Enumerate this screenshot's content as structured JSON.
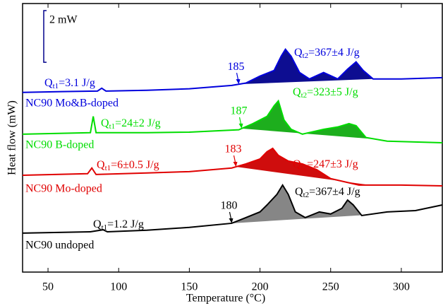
{
  "chart_data": {
    "type": "line",
    "xlabel": "Temperature (°C)",
    "ylabel": "Heat flow (mW)",
    "xlim": [
      32,
      329
    ],
    "ylim": [
      0,
      10.4
    ],
    "xticks": [
      50,
      100,
      150,
      200,
      250,
      300
    ],
    "scale_bar": {
      "value": 2,
      "label": "2 mW"
    },
    "series": [
      {
        "name": "NC90 Mo&B-doped",
        "color": "#0000dd",
        "fill_color": "#00008b",
        "onset": 185,
        "q1": {
          "symbol": "Q",
          "sub": "t1",
          "text": "=3.1 J/g"
        },
        "q2": {
          "symbol": "Q",
          "sub": "t2",
          "text": "=367±4 J/g"
        },
        "x": [
          32,
          60,
          85,
          88,
          91,
          120,
          150,
          180,
          190,
          200,
          210,
          215,
          218,
          222,
          228,
          235,
          245,
          255,
          262,
          268,
          273,
          280,
          300,
          329
        ],
        "values": [
          6.96,
          6.99,
          7.01,
          7.12,
          7.01,
          7.04,
          7.1,
          7.23,
          7.32,
          7.59,
          7.81,
          8.36,
          8.63,
          8.36,
          7.73,
          7.48,
          7.73,
          7.48,
          7.86,
          8.14,
          7.81,
          7.48,
          7.48,
          7.53
        ]
      },
      {
        "name": "NC90 B-doped",
        "color": "#00dd00",
        "fill_color": "#11aa11",
        "onset": 187,
        "q1": {
          "symbol": "Q",
          "sub": "t1",
          "text": "=24±2 J/g"
        },
        "q2": {
          "symbol": "Q",
          "sub": "t2",
          "text": "=323±5 J/g"
        },
        "x": [
          32,
          80,
          82,
          84,
          120,
          150,
          185,
          195,
          205,
          210,
          213,
          217,
          222,
          230,
          245,
          255,
          263,
          268,
          275,
          290,
          329
        ],
        "values": [
          5.34,
          5.4,
          6.03,
          5.4,
          5.4,
          5.42,
          5.51,
          5.75,
          6.03,
          6.44,
          6.63,
          5.89,
          5.53,
          5.34,
          5.53,
          5.62,
          5.75,
          5.67,
          5.21,
          5.07,
          5.01
        ]
      },
      {
        "name": "NC90 Mo-doped",
        "color": "#e00000",
        "fill_color": "#cc0000",
        "onset": 183,
        "q1": {
          "symbol": "Q",
          "sub": "t1",
          "text": "=6±0.5 J/g"
        },
        "q2": {
          "symbol": "Q",
          "sub": "t2",
          "text": "=247±3 J/g"
        },
        "x": [
          32,
          78,
          81,
          84,
          120,
          150,
          180,
          190,
          200,
          205,
          209,
          213,
          220,
          230,
          240,
          250,
          270,
          300,
          329
        ],
        "values": [
          3.75,
          3.81,
          4.03,
          3.78,
          3.84,
          3.89,
          4.03,
          4.19,
          4.38,
          4.66,
          4.79,
          4.52,
          4.3,
          4.19,
          3.97,
          3.62,
          3.37,
          3.37,
          3.34
        ]
      },
      {
        "name": "NC90 undoped",
        "color": "#000000",
        "fill_color": "#808080",
        "onset": 180,
        "q1": {
          "symbol": "Q",
          "sub": "t1",
          "text": "=1.2 J/g"
        },
        "q2": {
          "symbol": "Q",
          "sub": "t2",
          "text": "=367±4 J/g"
        },
        "x": [
          32,
          80,
          89,
          92,
          120,
          150,
          180,
          190,
          200,
          205,
          212,
          216,
          220,
          225,
          232,
          242,
          250,
          258,
          262,
          266,
          272,
          290,
          310,
          329
        ],
        "values": [
          1.51,
          1.56,
          1.64,
          1.56,
          1.62,
          1.73,
          1.89,
          2.11,
          2.33,
          2.6,
          3.01,
          3.37,
          3.01,
          2.33,
          2.11,
          2.33,
          2.25,
          2.47,
          2.79,
          2.6,
          2.19,
          2.33,
          2.38,
          2.6
        ]
      }
    ]
  }
}
